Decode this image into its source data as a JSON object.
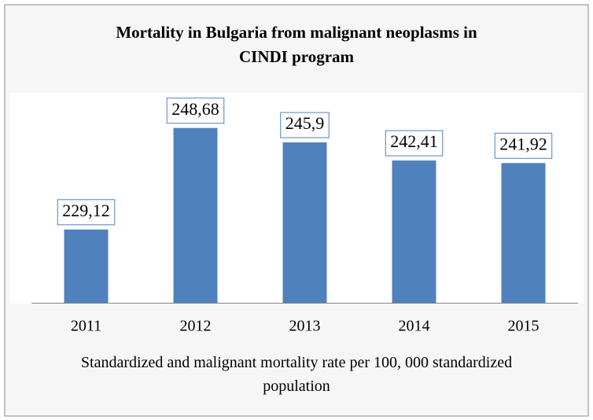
{
  "chart_data": {
    "type": "bar",
    "title": "Mortality in Bulgaria from malignant neoplasms in CINDI program",
    "x_label": "Standardized and malignant mortality rate per 100, 000 standardized population",
    "categories": [
      "2011",
      "2012",
      "2013",
      "2014",
      "2015"
    ],
    "values": [
      229.12,
      248.68,
      245.9,
      242.41,
      241.92
    ],
    "value_labels": [
      "229,12",
      "248,68",
      "245,9",
      "242,41",
      "241,92"
    ],
    "color": "#4f81bd",
    "ylim": [
      215,
      250
    ]
  }
}
